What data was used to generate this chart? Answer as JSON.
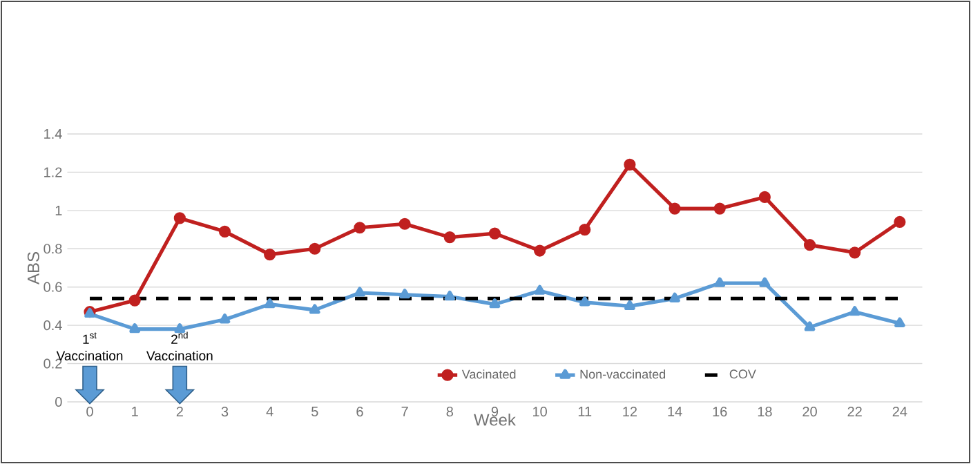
{
  "chart_data": {
    "type": "line",
    "xlabel": "Week",
    "ylabel": "ABS",
    "categories": [
      "0",
      "1",
      "2",
      "3",
      "4",
      "5",
      "6",
      "7",
      "8",
      "9",
      "10",
      "11",
      "12",
      "14",
      "16",
      "18",
      "20",
      "22",
      "24"
    ],
    "series": [
      {
        "name": "Vacinated",
        "color": "#c0201f",
        "marker": "circle",
        "values": [
          0.47,
          0.53,
          0.96,
          0.89,
          0.77,
          0.8,
          0.91,
          0.93,
          0.86,
          0.88,
          0.79,
          0.9,
          1.24,
          1.01,
          1.01,
          1.07,
          0.82,
          0.78,
          0.94
        ]
      },
      {
        "name": "Non-vaccinated",
        "color": "#5b9bd5",
        "marker": "triangle",
        "values": [
          0.46,
          0.38,
          0.38,
          0.43,
          0.51,
          0.48,
          0.57,
          0.56,
          0.55,
          0.51,
          0.58,
          0.52,
          0.5,
          0.54,
          0.62,
          0.62,
          0.39,
          0.47,
          0.41
        ]
      },
      {
        "name": "COV",
        "color": "#000000",
        "marker": "none",
        "line_style": "dashed",
        "values": [
          0.54,
          0.54,
          0.54,
          0.54,
          0.54,
          0.54,
          0.54,
          0.54,
          0.54,
          0.54,
          0.54,
          0.54,
          0.54,
          0.54,
          0.54,
          0.54,
          0.54,
          0.54,
          0.54
        ]
      }
    ],
    "ylim": [
      0,
      1.4
    ],
    "yticks": [
      0,
      0.2,
      0.4,
      0.6,
      0.8,
      1,
      1.2,
      1.4
    ],
    "grid": "y",
    "legend": "bottom",
    "annotations": [
      "1$^{st}$ Vaccination",
      "2$^{nd}$ Vaccination"
    ]
  }
}
